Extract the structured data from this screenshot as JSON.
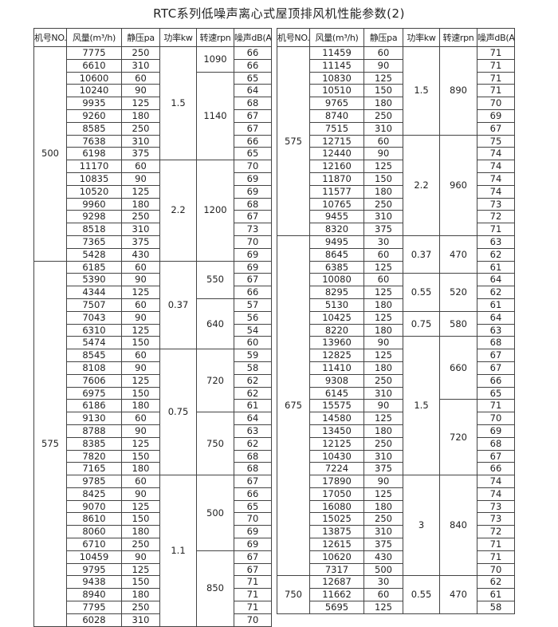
{
  "title": "RTC系列低噪声离心式屋顶排风机性能参数(2)",
  "headers": [
    "机号NO.",
    "风量(m³/h)",
    "静压pa",
    "功率kw",
    "转速rpn",
    "噪声dB(A)"
  ],
  "tables": [
    {
      "models": [
        {
          "no": "500",
          "powers": [
            {
              "kw": "1.5",
              "speeds": [
                {
                  "rpn": "1090",
                  "rows": [
                    [
                      "7775",
                      "250",
                      "66"
                    ],
                    [
                      "6610",
                      "310",
                      "66"
                    ]
                  ]
                },
                {
                  "rpn": "1140",
                  "rows": [
                    [
                      "10600",
                      "60",
                      "65"
                    ],
                    [
                      "10240",
                      "90",
                      "64"
                    ],
                    [
                      "9935",
                      "125",
                      "68"
                    ],
                    [
                      "9260",
                      "180",
                      "67"
                    ],
                    [
                      "8585",
                      "250",
                      "67"
                    ],
                    [
                      "7638",
                      "310",
                      "66"
                    ],
                    [
                      "6198",
                      "375",
                      "65"
                    ]
                  ]
                }
              ]
            },
            {
              "kw": "2.2",
              "speeds": [
                {
                  "rpn": "1200",
                  "rows": [
                    [
                      "11170",
                      "60",
                      "70"
                    ],
                    [
                      "10835",
                      "90",
                      "69"
                    ],
                    [
                      "10520",
                      "125",
                      "69"
                    ],
                    [
                      "9960",
                      "180",
                      "68"
                    ],
                    [
                      "9298",
                      "250",
                      "67"
                    ],
                    [
                      "8518",
                      "310",
                      "73"
                    ],
                    [
                      "7365",
                      "375",
                      "70"
                    ],
                    [
                      "5428",
                      "430",
                      "69"
                    ]
                  ]
                }
              ]
            }
          ]
        },
        {
          "no": "575",
          "powers": [
            {
              "kw": "0.37",
              "speeds": [
                {
                  "rpn": "550",
                  "rows": [
                    [
                      "6185",
                      "60",
                      "69"
                    ],
                    [
                      "5390",
                      "90",
                      "67"
                    ],
                    [
                      "4344",
                      "125",
                      "66"
                    ]
                  ]
                },
                {
                  "rpn": "640",
                  "rows": [
                    [
                      "7507",
                      "60",
                      "57"
                    ],
                    [
                      "7043",
                      "90",
                      "56"
                    ],
                    [
                      "6310",
                      "125",
                      "54"
                    ],
                    [
                      "5474",
                      "150",
                      "60"
                    ]
                  ]
                }
              ]
            },
            {
              "kw": "0.75",
              "speeds": [
                {
                  "rpn": "720",
                  "rows": [
                    [
                      "8545",
                      "60",
                      "59"
                    ],
                    [
                      "8108",
                      "90",
                      "58"
                    ],
                    [
                      "7606",
                      "125",
                      "62"
                    ],
                    [
                      "6975",
                      "150",
                      "62"
                    ],
                    [
                      "6186",
                      "180",
                      "61"
                    ]
                  ]
                },
                {
                  "rpn": "750",
                  "rows": [
                    [
                      "9130",
                      "60",
                      "64"
                    ],
                    [
                      "8788",
                      "90",
                      "63"
                    ],
                    [
                      "8385",
                      "125",
                      "62"
                    ],
                    [
                      "7820",
                      "150",
                      "68"
                    ],
                    [
                      "7165",
                      "180",
                      "68"
                    ]
                  ]
                }
              ]
            },
            {
              "kw": "1.1",
              "speeds": [
                {
                  "rpn": "500",
                  "rows": [
                    [
                      "9785",
                      "60",
                      "67"
                    ],
                    [
                      "8425",
                      "90",
                      "66"
                    ],
                    [
                      "9070",
                      "125",
                      "65"
                    ],
                    [
                      "8610",
                      "150",
                      "70"
                    ],
                    [
                      "8060",
                      "180",
                      "69"
                    ],
                    [
                      "6710",
                      "250",
                      "69"
                    ]
                  ]
                },
                {
                  "rpn": "850",
                  "rows": [
                    [
                      "10459",
                      "90",
                      "67"
                    ],
                    [
                      "9795",
                      "125",
                      "67"
                    ],
                    [
                      "9438",
                      "150",
                      "71"
                    ],
                    [
                      "8940",
                      "180",
                      "71"
                    ],
                    [
                      "7795",
                      "250",
                      "71"
                    ],
                    [
                      "6028",
                      "310",
                      "70"
                    ]
                  ]
                }
              ]
            }
          ]
        }
      ]
    },
    {
      "models": [
        {
          "no": "575",
          "powers": [
            {
              "kw": "1.5",
              "speeds": [
                {
                  "rpn": "890",
                  "rows": [
                    [
                      "11459",
                      "60",
                      "71"
                    ],
                    [
                      "11145",
                      "90",
                      "71"
                    ],
                    [
                      "10830",
                      "125",
                      "71"
                    ],
                    [
                      "10510",
                      "150",
                      "71"
                    ],
                    [
                      "9765",
                      "180",
                      "70"
                    ],
                    [
                      "8740",
                      "250",
                      "69"
                    ],
                    [
                      "7515",
                      "310",
                      "67"
                    ]
                  ]
                }
              ]
            },
            {
              "kw": "2.2",
              "speeds": [
                {
                  "rpn": "960",
                  "rows": [
                    [
                      "12715",
                      "60",
                      "75"
                    ],
                    [
                      "12440",
                      "90",
                      "74"
                    ],
                    [
                      "12160",
                      "125",
                      "74"
                    ],
                    [
                      "11870",
                      "150",
                      "74"
                    ],
                    [
                      "11577",
                      "180",
                      "74"
                    ],
                    [
                      "10765",
                      "250",
                      "73"
                    ],
                    [
                      "9455",
                      "310",
                      "72"
                    ],
                    [
                      "8320",
                      "375",
                      "71"
                    ]
                  ]
                }
              ]
            }
          ]
        },
        {
          "no": "675",
          "powers": [
            {
              "kw": "0.37",
              "speeds": [
                {
                  "rpn": "470",
                  "rows": [
                    [
                      "9495",
                      "30",
                      "63"
                    ],
                    [
                      "8645",
                      "60",
                      "62"
                    ],
                    [
                      "6385",
                      "125",
                      "61"
                    ]
                  ]
                }
              ]
            },
            {
              "kw": "0.55",
              "speeds": [
                {
                  "rpn": "520",
                  "rows": [
                    [
                      "10080",
                      "60",
                      "64"
                    ],
                    [
                      "8295",
                      "125",
                      "62"
                    ],
                    [
                      "5130",
                      "180",
                      "61"
                    ]
                  ]
                }
              ]
            },
            {
              "kw": "0.75",
              "speeds": [
                {
                  "rpn": "580",
                  "rows": [
                    [
                      "10425",
                      "125",
                      "64"
                    ],
                    [
                      "8220",
                      "180",
                      "63"
                    ]
                  ]
                }
              ]
            },
            {
              "kw": "1.5",
              "speeds": [
                {
                  "rpn": "660",
                  "rows": [
                    [
                      "13960",
                      "90",
                      "68"
                    ],
                    [
                      "12825",
                      "125",
                      "67"
                    ],
                    [
                      "11410",
                      "180",
                      "67"
                    ],
                    [
                      "9308",
                      "250",
                      "66"
                    ],
                    [
                      "6145",
                      "310",
                      "65"
                    ]
                  ]
                },
                {
                  "rpn": "720",
                  "rows": [
                    [
                      "15575",
                      "90",
                      "71"
                    ],
                    [
                      "14580",
                      "125",
                      "70"
                    ],
                    [
                      "13450",
                      "180",
                      "69"
                    ],
                    [
                      "12125",
                      "250",
                      "68"
                    ],
                    [
                      "10430",
                      "310",
                      "67"
                    ],
                    [
                      "7224",
                      "375",
                      "66"
                    ]
                  ]
                }
              ]
            },
            {
              "kw": "3",
              "speeds": [
                {
                  "rpn": "840",
                  "rows": [
                    [
                      "17890",
                      "90",
                      "74"
                    ],
                    [
                      "17050",
                      "125",
                      "74"
                    ],
                    [
                      "16080",
                      "180",
                      "73"
                    ],
                    [
                      "15025",
                      "250",
                      "73"
                    ],
                    [
                      "13875",
                      "310",
                      "72"
                    ],
                    [
                      "12615",
                      "375",
                      "71"
                    ],
                    [
                      "10620",
                      "430",
                      "71"
                    ],
                    [
                      "7317",
                      "500",
                      "70"
                    ]
                  ]
                }
              ]
            }
          ]
        },
        {
          "no": "750",
          "powers": [
            {
              "kw": "0.55",
              "speeds": [
                {
                  "rpn": "470",
                  "rows": [
                    [
                      "12687",
                      "30",
                      "62"
                    ],
                    [
                      "11662",
                      "60",
                      "61"
                    ],
                    [
                      "5695",
                      "125",
                      "58"
                    ]
                  ]
                }
              ]
            }
          ]
        }
      ]
    }
  ]
}
